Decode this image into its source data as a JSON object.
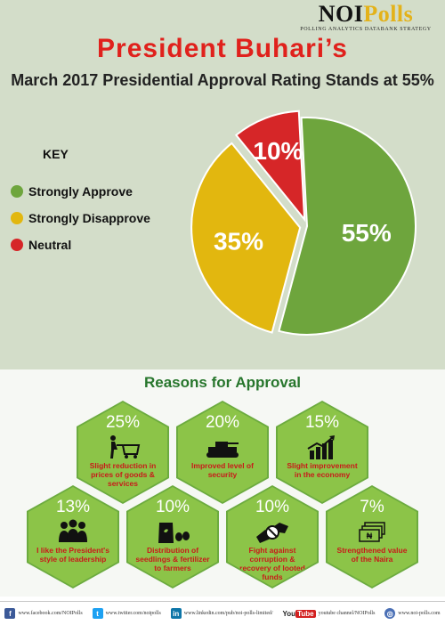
{
  "logo": {
    "brand_noi": "NOI",
    "brand_polls": "Polls",
    "tagline": "POLLING  ANALYTICS  DATABANK  STRATEGY"
  },
  "header": {
    "title": "President Buhari’s",
    "subtitle": "March 2017 Presidential Approval Rating Stands at 55%"
  },
  "key": {
    "title": "KEY",
    "items": [
      {
        "label": "Strongly Approve",
        "color": "#6ea53d"
      },
      {
        "label": "Strongly Disapprove",
        "color": "#e2b70f"
      },
      {
        "label": "Neutral",
        "color": "#d62628"
      }
    ]
  },
  "chart_data": {
    "type": "pie",
    "title": "",
    "slices": [
      {
        "label": "Strongly Approve",
        "value": 55,
        "display": "55%",
        "color": "#6ea53d"
      },
      {
        "label": "Strongly Disapprove",
        "value": 35,
        "display": "35%",
        "color": "#e2b70f"
      },
      {
        "label": "Neutral",
        "value": 10,
        "display": "10%",
        "color": "#d62628"
      }
    ],
    "legend_placement": "left"
  },
  "reasons": {
    "title": "Reasons for Approval",
    "items": [
      {
        "pct": "25%",
        "label": "Slight reduction in prices of goods & services",
        "icon": "shopping-cart-icon"
      },
      {
        "pct": "20%",
        "label": "Improved level of security",
        "icon": "tank-icon"
      },
      {
        "pct": "15%",
        "label": "Slight improvement in the economy",
        "icon": "growth-chart-icon"
      },
      {
        "pct": "13%",
        "label": "I like the President's style of leadership",
        "icon": "people-icon"
      },
      {
        "pct": "10%",
        "label": "Distribution of seedlings & fertilizer to farmers",
        "icon": "seed-sack-icon"
      },
      {
        "pct": "10%",
        "label": "Fight against corruption & recovery of looted funds",
        "icon": "no-bribe-icon"
      },
      {
        "pct": "7%",
        "label": "Strengthened value of the Naira",
        "icon": "naira-notes-icon"
      }
    ]
  },
  "footer": {
    "facebook": "www.facebook.com/NOIPolls",
    "twitter": "www.twitter.com/noipolls",
    "linkedin": "www.linkedin.com/pub/noi-polls-limited/",
    "youtube_you": "You",
    "youtube_tube": "Tube",
    "youtube": "youtube channel/NOIPolls",
    "website": "www.noi-polls.com"
  }
}
